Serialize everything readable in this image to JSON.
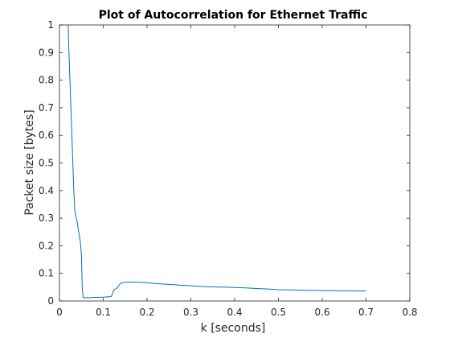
{
  "chart_data": {
    "type": "line",
    "title": "Plot of Autocorrelation for Ethernet Traffic",
    "xlabel": "k [seconds]",
    "ylabel": "Packet size [bytes]",
    "xlim": [
      0,
      0.8
    ],
    "ylim": [
      0,
      1
    ],
    "xticks": [
      "0",
      "0.1",
      "0.2",
      "0.3",
      "0.4",
      "0.5",
      "0.6",
      "0.7",
      "0.8"
    ],
    "yticks": [
      "0",
      "0.1",
      "0.2",
      "0.3",
      "0.4",
      "0.5",
      "0.6",
      "0.7",
      "0.8",
      "0.9",
      "1"
    ],
    "grid": false,
    "series": [
      {
        "color": "#0072bd",
        "x": [
          0.02,
          0.021,
          0.023,
          0.025,
          0.027,
          0.029,
          0.031,
          0.033,
          0.035,
          0.037,
          0.04,
          0.043,
          0.046,
          0.048,
          0.05,
          0.051,
          0.052,
          0.054,
          0.06,
          0.07,
          0.08,
          0.09,
          0.1,
          0.11,
          0.118,
          0.122,
          0.125,
          0.13,
          0.135,
          0.14,
          0.15,
          0.16,
          0.18,
          0.2,
          0.22,
          0.25,
          0.28,
          0.3,
          0.33,
          0.35,
          0.38,
          0.4,
          0.43,
          0.45,
          0.48,
          0.5,
          0.53,
          0.55,
          0.6,
          0.65,
          0.7
        ],
        "y": [
          1.0,
          0.93,
          0.84,
          0.75,
          0.66,
          0.57,
          0.48,
          0.39,
          0.33,
          0.31,
          0.29,
          0.26,
          0.23,
          0.21,
          0.17,
          0.12,
          0.05,
          0.012,
          0.012,
          0.012,
          0.013,
          0.013,
          0.014,
          0.015,
          0.016,
          0.03,
          0.042,
          0.045,
          0.055,
          0.065,
          0.068,
          0.068,
          0.068,
          0.066,
          0.063,
          0.06,
          0.057,
          0.055,
          0.052,
          0.051,
          0.05,
          0.049,
          0.047,
          0.045,
          0.043,
          0.041,
          0.04,
          0.039,
          0.038,
          0.037,
          0.036
        ]
      }
    ]
  }
}
